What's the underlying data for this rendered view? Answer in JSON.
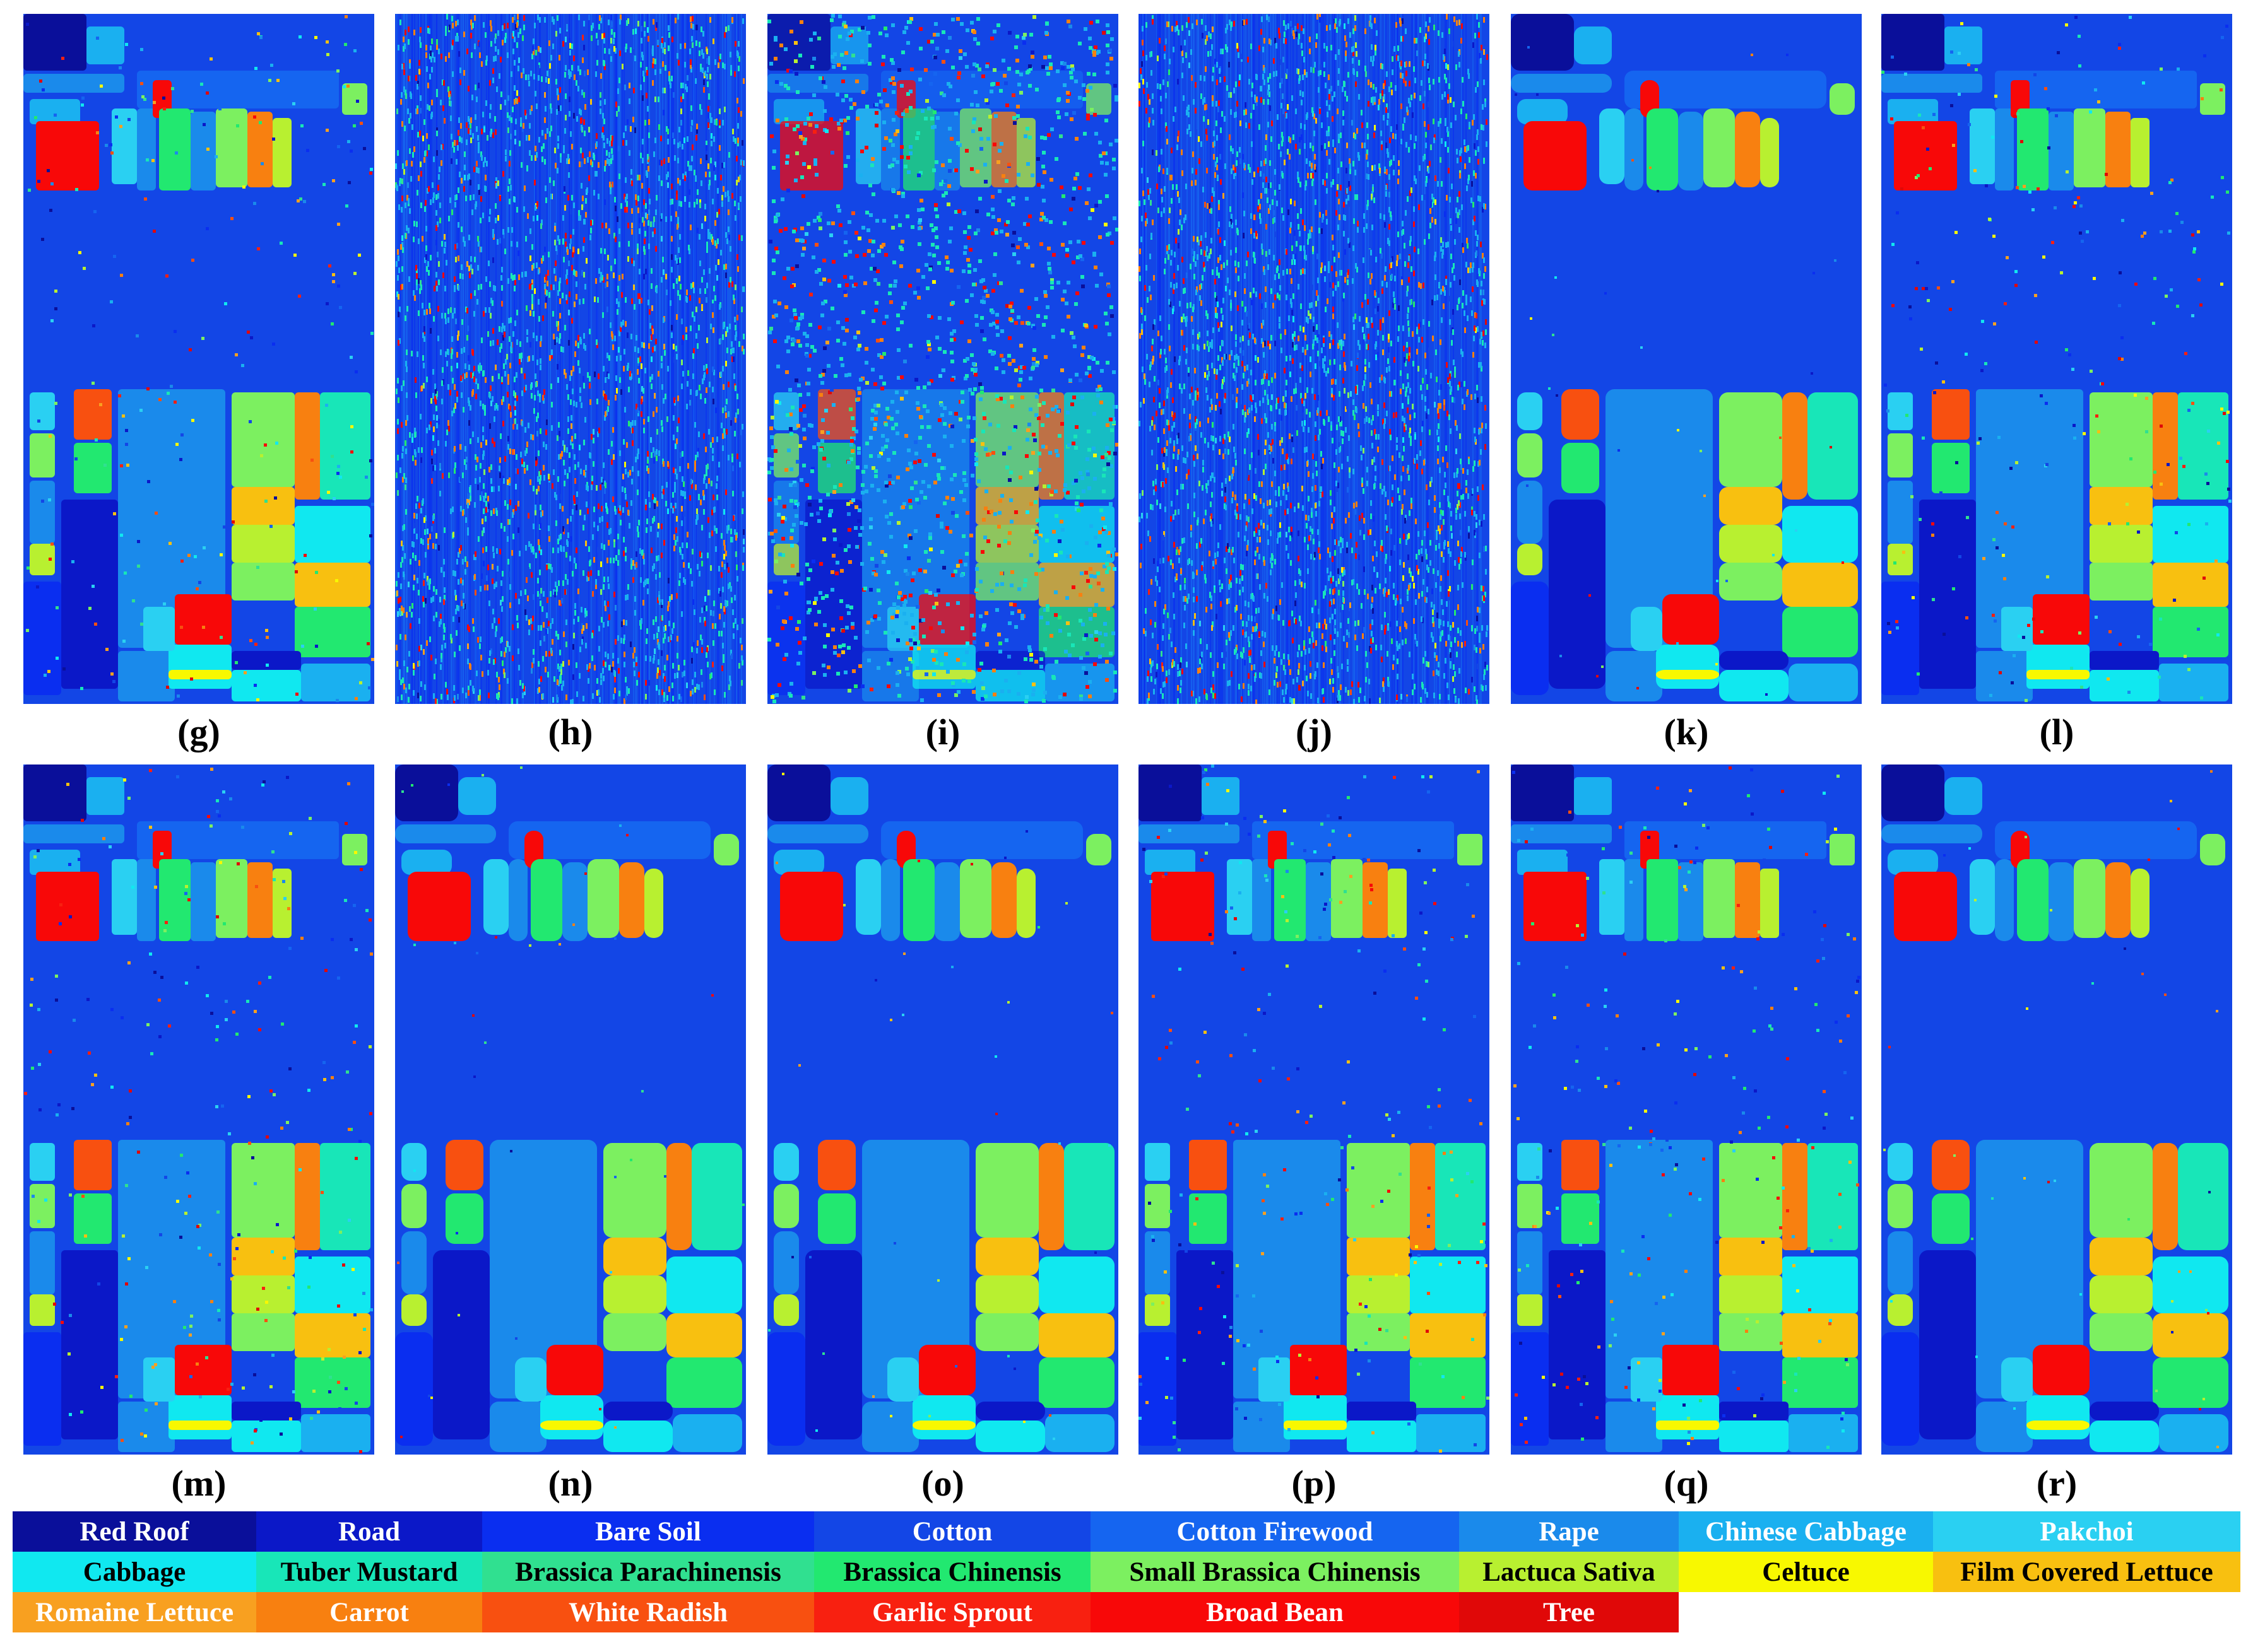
{
  "panels": [
    {
      "label": "(g)",
      "style": "noisy-edges"
    },
    {
      "label": "(h)",
      "style": "striped"
    },
    {
      "label": "(i)",
      "style": "speckled"
    },
    {
      "label": "(j)",
      "style": "striped"
    },
    {
      "label": "(k)",
      "style": "smooth"
    },
    {
      "label": "(l)",
      "style": "noisy-edges"
    },
    {
      "label": "(m)",
      "style": "noisy-edges"
    },
    {
      "label": "(n)",
      "style": "smooth"
    },
    {
      "label": "(o)",
      "style": "smooth"
    },
    {
      "label": "(p)",
      "style": "noisy-edges"
    },
    {
      "label": "(q)",
      "style": "noisy-edges"
    },
    {
      "label": "(r)",
      "style": "smooth"
    }
  ],
  "legend": [
    {
      "name": "Red Roof",
      "color": "#0a0f9a",
      "text_color": "#ffffff"
    },
    {
      "name": "Road",
      "color": "#0b18c8",
      "text_color": "#ffffff"
    },
    {
      "name": "Bare Soil",
      "color": "#0a2ef0",
      "text_color": "#ffffff"
    },
    {
      "name": "Cotton",
      "color": "#1346e6",
      "text_color": "#ffffff"
    },
    {
      "name": "Cotton Firewood",
      "color": "#1565f0",
      "text_color": "#ffffff"
    },
    {
      "name": "Rape",
      "color": "#1a8aeb",
      "text_color": "#ffffff"
    },
    {
      "name": "Chinese Cabbage",
      "color": "#1ab0f0",
      "text_color": "#ffffff"
    },
    {
      "name": "Pakchoi",
      "color": "#2ad0f2",
      "text_color": "#ffffff"
    },
    {
      "name": "Cabbage",
      "color": "#10e8f0",
      "text_color": "#000000"
    },
    {
      "name": "Tuber Mustard",
      "color": "#18e6b8",
      "text_color": "#000000"
    },
    {
      "name": "Brassica Parachinensis",
      "color": "#30e090",
      "text_color": "#000000"
    },
    {
      "name": "Brassica Chinensis",
      "color": "#22e870",
      "text_color": "#000000"
    },
    {
      "name": "Small Brassica Chinensis",
      "color": "#7cf060",
      "text_color": "#000000"
    },
    {
      "name": "Lactuca Sativa",
      "color": "#b8f030",
      "text_color": "#000000"
    },
    {
      "name": "Celtuce",
      "color": "#f8f800",
      "text_color": "#000000"
    },
    {
      "name": "Film Covered Lettuce",
      "color": "#f8c010",
      "text_color": "#000000"
    },
    {
      "name": "Romaine Lettuce",
      "color": "#f8a020",
      "text_color": "#ffffff"
    },
    {
      "name": "Carrot",
      "color": "#f88010",
      "text_color": "#ffffff"
    },
    {
      "name": "White Radish",
      "color": "#f85010",
      "text_color": "#ffffff"
    },
    {
      "name": "Garlic Sprout",
      "color": "#f82010",
      "text_color": "#ffffff"
    },
    {
      "name": "Broad Bean",
      "color": "#f80808",
      "text_color": "#ffffff"
    },
    {
      "name": "Tree",
      "color": "#e00808",
      "text_color": "#ffffff"
    }
  ]
}
